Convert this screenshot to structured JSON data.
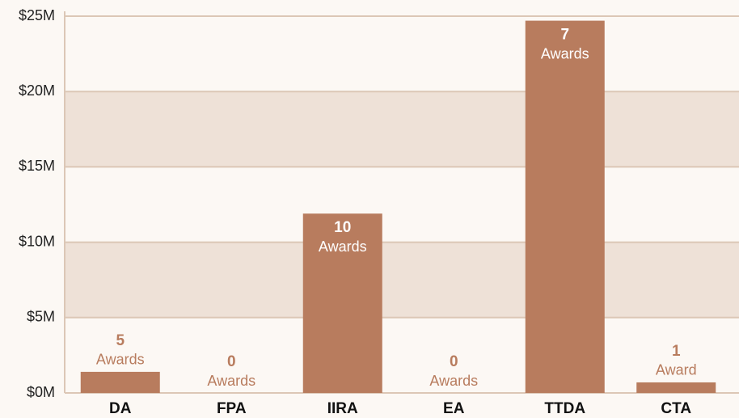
{
  "chart_data": {
    "type": "bar",
    "categories": [
      "DA",
      "FPA",
      "IIRA",
      "EA",
      "TTDA",
      "CTA"
    ],
    "values": [
      1.4,
      0,
      11.9,
      0,
      24.7,
      0.7
    ],
    "award_counts": [
      5,
      0,
      10,
      0,
      7,
      1
    ],
    "award_words": [
      "Awards",
      "Awards",
      "Awards",
      "Awards",
      "Awards",
      "Award"
    ],
    "color": "#b87c5e",
    "ylim": [
      0,
      25
    ],
    "yticks": [
      {
        "value": 0,
        "label": "$0M"
      },
      {
        "value": 5,
        "label": "$5M"
      },
      {
        "value": 10,
        "label": "$10M"
      },
      {
        "value": 15,
        "label": "$15M"
      },
      {
        "value": 20,
        "label": "$20M"
      },
      {
        "value": 25,
        "label": "$25M"
      }
    ],
    "grid": true
  }
}
